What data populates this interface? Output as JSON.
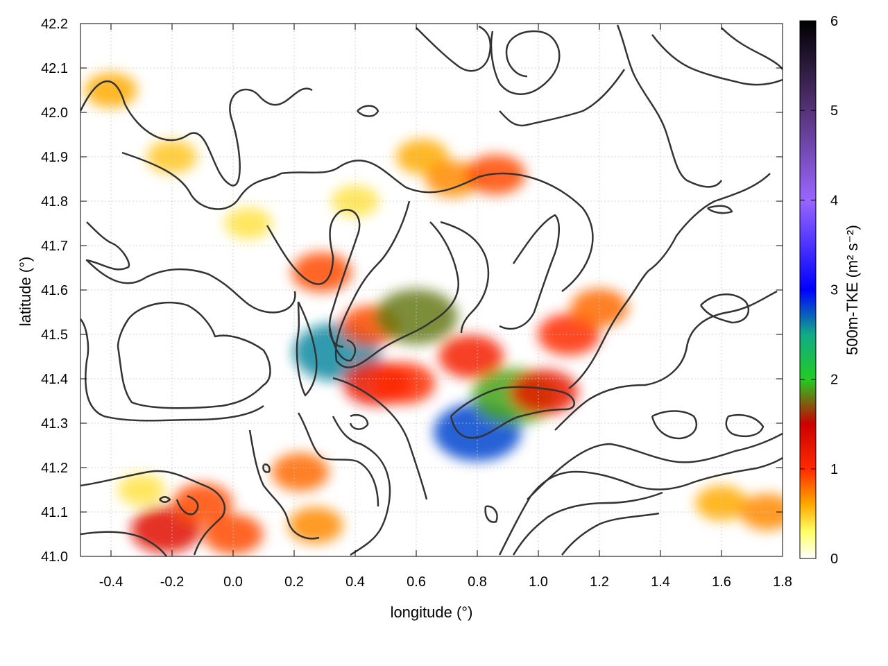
{
  "chart_data": {
    "type": "heatmap",
    "title": "",
    "xlabel": "longitude (°)",
    "ylabel": "latitude (°)",
    "colorbar_label": "500m-TKE (m² s⁻²)",
    "xlim": [
      -0.5,
      1.8
    ],
    "ylim": [
      41.0,
      42.2
    ],
    "clim": [
      0,
      6
    ],
    "x_ticks": [
      -0.4,
      -0.2,
      0.0,
      0.2,
      0.4,
      0.6,
      0.8,
      1.0,
      1.2,
      1.4,
      1.6,
      1.8
    ],
    "x_tick_labels": [
      "-0.4",
      "-0.2",
      "0.0",
      "0.2",
      "0.4",
      "0.6",
      "0.8",
      "1.0",
      "1.2",
      "1.4",
      "1.6",
      "1.8"
    ],
    "y_ticks": [
      41.0,
      41.1,
      41.2,
      41.3,
      41.4,
      41.5,
      41.6,
      41.7,
      41.8,
      41.9,
      42.0,
      42.1,
      42.2
    ],
    "y_tick_labels": [
      "41.0",
      "41.1",
      "41.2",
      "41.3",
      "41.4",
      "41.5",
      "41.6",
      "41.7",
      "41.8",
      "41.9",
      "42.0",
      "42.1",
      "42.2"
    ],
    "c_ticks": [
      0,
      1,
      2,
      3,
      4,
      5,
      6
    ],
    "c_tick_labels": [
      "0",
      "1",
      "2",
      "3",
      "4",
      "5",
      "6"
    ],
    "grid": true,
    "colormap": [
      {
        "v": 0.0,
        "color": "#ffffff"
      },
      {
        "v": 0.3,
        "color": "#ffff66"
      },
      {
        "v": 0.6,
        "color": "#ffaa00"
      },
      {
        "v": 1.0,
        "color": "#ff2a00"
      },
      {
        "v": 1.5,
        "color": "#cc0000"
      },
      {
        "v": 2.0,
        "color": "#22cc22"
      },
      {
        "v": 2.5,
        "color": "#11aa88"
      },
      {
        "v": 3.0,
        "color": "#0000ff"
      },
      {
        "v": 4.0,
        "color": "#9966ff"
      },
      {
        "v": 5.0,
        "color": "#553377"
      },
      {
        "v": 6.0,
        "color": "#000000"
      }
    ],
    "hotspots": [
      {
        "lon": -0.22,
        "lat": 41.06,
        "value": 1.3
      },
      {
        "lon": -0.1,
        "lat": 41.12,
        "value": 0.9
      },
      {
        "lon": 0.0,
        "lat": 41.05,
        "value": 0.9
      },
      {
        "lon": -0.3,
        "lat": 41.15,
        "value": 0.4
      },
      {
        "lon": 0.22,
        "lat": 41.19,
        "value": 0.8
      },
      {
        "lon": 0.27,
        "lat": 41.07,
        "value": 0.7
      },
      {
        "lon": 0.29,
        "lat": 41.64,
        "value": 0.9
      },
      {
        "lon": 0.34,
        "lat": 41.46,
        "value": 2.6
      },
      {
        "lon": 0.45,
        "lat": 41.52,
        "value": 0.9
      },
      {
        "lon": 0.47,
        "lat": 41.39,
        "value": 1.2
      },
      {
        "lon": 0.56,
        "lat": 41.39,
        "value": 1.0
      },
      {
        "lon": 0.6,
        "lat": 41.54,
        "value": 1.8
      },
      {
        "lon": 0.62,
        "lat": 41.9,
        "value": 0.6
      },
      {
        "lon": 0.72,
        "lat": 41.85,
        "value": 0.7
      },
      {
        "lon": 0.86,
        "lat": 41.86,
        "value": 0.9
      },
      {
        "lon": 0.78,
        "lat": 41.45,
        "value": 1.1
      },
      {
        "lon": 0.8,
        "lat": 41.28,
        "value": 2.8
      },
      {
        "lon": 0.92,
        "lat": 41.36,
        "value": 1.9
      },
      {
        "lon": 1.02,
        "lat": 41.37,
        "value": 1.2
      },
      {
        "lon": 1.1,
        "lat": 41.5,
        "value": 1.0
      },
      {
        "lon": 1.2,
        "lat": 41.56,
        "value": 0.8
      },
      {
        "lon": 1.6,
        "lat": 41.12,
        "value": 0.6
      },
      {
        "lon": 1.75,
        "lat": 41.1,
        "value": 0.7
      },
      {
        "lon": -0.4,
        "lat": 42.05,
        "value": 0.6
      },
      {
        "lon": -0.2,
        "lat": 41.9,
        "value": 0.5
      },
      {
        "lon": 0.05,
        "lat": 41.75,
        "value": 0.4
      },
      {
        "lon": 0.4,
        "lat": 41.8,
        "value": 0.4
      }
    ],
    "contour_color": "#333333"
  }
}
